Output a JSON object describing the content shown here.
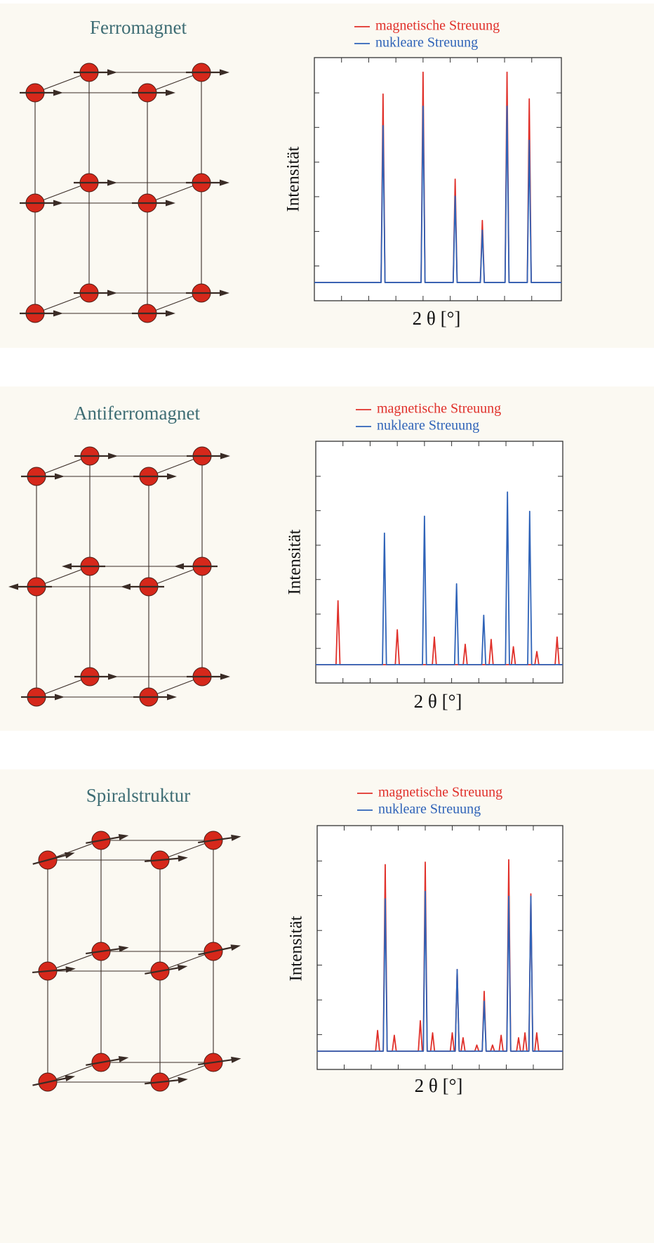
{
  "chart_data": [
    {
      "type": "line",
      "title": "Ferromagnet",
      "xlabel": "2 θ [°]",
      "ylabel": "Intensität",
      "xlim": [
        0,
        100
      ],
      "ylim": [
        0,
        100
      ],
      "xticks": [
        11,
        22,
        33,
        44,
        55,
        66,
        77,
        88
      ],
      "yticks": [
        14.3,
        28.5,
        42.8,
        57,
        71.3,
        85.5
      ],
      "x": [
        0,
        27,
        27.8,
        28.6,
        43.2,
        44,
        44.8,
        56.2,
        57,
        57.8,
        67.2,
        68,
        68.8,
        77.2,
        78,
        78.8,
        86.2,
        87,
        87.8,
        100
      ],
      "series": [
        {
          "name": "magnetische Streuung",
          "color": "#e0302a",
          "values": [
            7.5,
            7.5,
            85,
            7.5,
            7.5,
            94,
            7.5,
            7.5,
            50,
            7.5,
            7.5,
            33,
            7.5,
            7.5,
            94,
            7.5,
            7.5,
            83,
            7.5,
            7.5
          ]
        },
        {
          "name": "nukleare Streuung",
          "color": "#2f63b8",
          "values": [
            7.5,
            7.5,
            72,
            7.5,
            7.5,
            80,
            7.5,
            7.5,
            43,
            7.5,
            7.5,
            29,
            7.5,
            7.5,
            80,
            7.5,
            7.5,
            66,
            7.5,
            7.5
          ]
        }
      ]
    },
    {
      "type": "line",
      "title": "Antiferromagnet",
      "xlabel": "2 θ [°]",
      "ylabel": "Intensität",
      "xlim": [
        0,
        100
      ],
      "ylim": [
        0,
        100
      ],
      "xticks": [
        11,
        22,
        33,
        44,
        55,
        66,
        77,
        88
      ],
      "yticks": [
        14.3,
        28.5,
        42.8,
        57,
        71.3,
        85.5
      ],
      "x": [
        0,
        8.2,
        9,
        9.8,
        27,
        27.8,
        28.6,
        32.2,
        33,
        33.8,
        43.2,
        44,
        44.8,
        47.2,
        48,
        48.8,
        56.2,
        57,
        57.8,
        59.7,
        60.5,
        61.3,
        67.2,
        68,
        68.8,
        70.2,
        71,
        71.8,
        76.8,
        77.6,
        78.4,
        79.2,
        80,
        80.8,
        85.8,
        86.6,
        87.4,
        88.7,
        89.5,
        90.3,
        96.9,
        97.7,
        98.5,
        100
      ],
      "series": [
        {
          "name": "magnetische Streuung",
          "color": "#e0302a",
          "values": [
            7.6,
            7.6,
            34,
            7.6,
            7.6,
            7.6,
            7.6,
            7.6,
            22,
            7.6,
            7.6,
            7.6,
            7.6,
            7.6,
            19,
            7.6,
            7.6,
            7.6,
            7.6,
            7.6,
            16,
            7.6,
            7.6,
            7.6,
            7.6,
            7.6,
            18,
            7.6,
            7.6,
            7.6,
            7.6,
            7.6,
            15,
            7.6,
            7.6,
            7.6,
            7.6,
            7.6,
            13,
            7.6,
            7.6,
            19,
            7.6,
            7.6
          ]
        },
        {
          "name": "nukleare Streuung",
          "color": "#2f63b8",
          "values": [
            7.6,
            7.6,
            7.6,
            7.6,
            7.6,
            62,
            7.6,
            7.6,
            7.6,
            7.6,
            7.6,
            69,
            7.6,
            7.6,
            7.6,
            7.6,
            7.6,
            41,
            7.6,
            7.6,
            7.6,
            7.6,
            7.6,
            28,
            7.6,
            7.6,
            7.6,
            7.6,
            7.6,
            79,
            7.6,
            7.6,
            7.6,
            7.6,
            7.6,
            71,
            7.6,
            7.6,
            7.6,
            7.6,
            7.6,
            7.6,
            7.6,
            7.6
          ]
        }
      ]
    },
    {
      "type": "line",
      "title": "Spiralstruktur",
      "xlabel": "2 θ [°]",
      "ylabel": "Intensität",
      "xlim": [
        0,
        100
      ],
      "ylim": [
        0,
        100
      ],
      "xticks": [
        11,
        22,
        33,
        44,
        55,
        66,
        77,
        88
      ],
      "yticks": [
        14.3,
        28.5,
        42.8,
        57,
        71.3,
        85.5
      ],
      "x": [
        0,
        23.8,
        24.6,
        25.4,
        26.9,
        27.7,
        28.5,
        30.6,
        31.4,
        32.2,
        41.2,
        42,
        42.8,
        43.2,
        44,
        44.8,
        46.2,
        47,
        47.8,
        54.2,
        55,
        55.8,
        56.2,
        57,
        57.8,
        58.6,
        59.4,
        60.2,
        64.2,
        65,
        65.8,
        67.2,
        68,
        68.8,
        70.6,
        71.4,
        72.2,
        74.1,
        74.9,
        75.7,
        77.2,
        78,
        78.8,
        81.2,
        82,
        82.8,
        83.8,
        84.6,
        85.4,
        86.2,
        87,
        87.8,
        88.6,
        89.4,
        90.2,
        100
      ],
      "series": [
        {
          "name": "magnetische Streuung",
          "color": "#e0302a",
          "values": [
            7.5,
            7.5,
            16,
            7.5,
            7.5,
            84,
            7.5,
            7.5,
            14,
            7.5,
            7.5,
            20,
            7.5,
            7.5,
            85,
            7.5,
            7.5,
            15,
            7.5,
            7.5,
            15,
            7.5,
            7.5,
            41,
            7.5,
            7.5,
            13,
            7.5,
            7.5,
            10,
            7.5,
            7.5,
            32,
            7.5,
            7.5,
            10,
            7.5,
            7.5,
            14,
            7.5,
            7.5,
            86,
            7.5,
            7.5,
            13,
            7.5,
            7.5,
            15,
            7.5,
            7.5,
            72,
            7.5,
            7.5,
            15,
            7.5,
            7.5
          ]
        },
        {
          "name": "nukleare Streuung",
          "color": "#2f63b8",
          "values": [
            7.5,
            7.5,
            7.5,
            7.5,
            7.5,
            70,
            7.5,
            7.5,
            7.5,
            7.5,
            7.5,
            7.5,
            7.5,
            7.5,
            73,
            7.5,
            7.5,
            7.5,
            7.5,
            7.5,
            7.5,
            7.5,
            7.5,
            41,
            7.5,
            7.5,
            7.5,
            7.5,
            7.5,
            7.5,
            7.5,
            7.5,
            28,
            7.5,
            7.5,
            7.5,
            7.5,
            7.5,
            7.5,
            7.5,
            7.5,
            71,
            7.5,
            7.5,
            7.5,
            7.5,
            7.5,
            7.5,
            7.5,
            7.5,
            71,
            7.5,
            7.5,
            7.5,
            7.5,
            7.5
          ]
        }
      ]
    }
  ]
}
